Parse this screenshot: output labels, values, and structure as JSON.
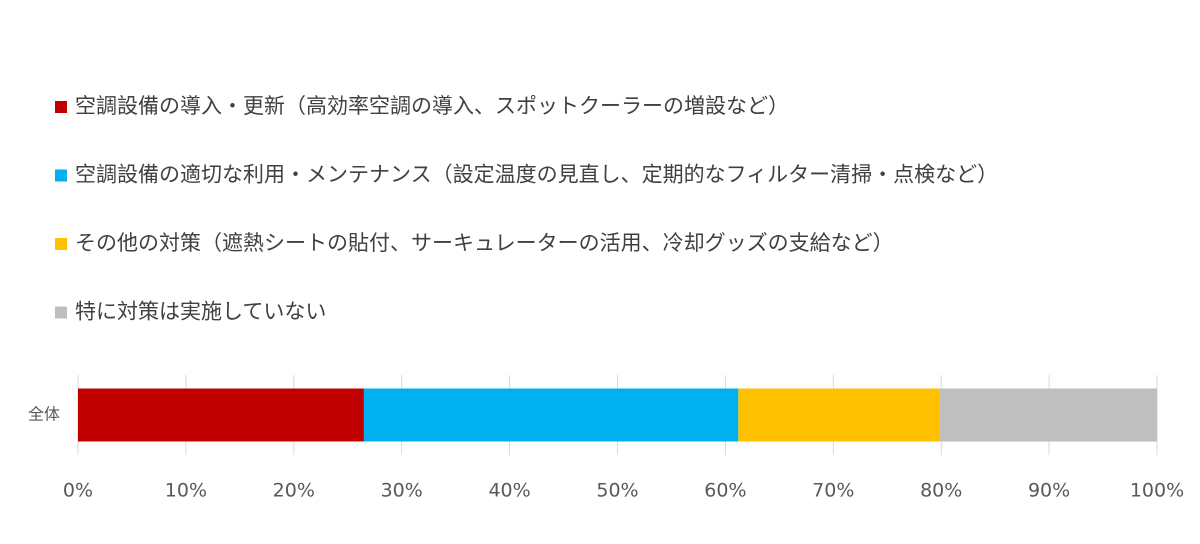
{
  "chart_data": {
    "type": "bar",
    "orientation": "horizontal",
    "stacked": true,
    "categories": [
      "全体"
    ],
    "series": [
      {
        "name": "空調設備の導入・更新（高効率空調の導入、スポットクーラーの増設など）",
        "color": "#c00000",
        "values": [
          26.5
        ]
      },
      {
        "name": "空調設備の適切な利用・メンテナンス（設定温度の見直し、定期的なフィルター清掃・点検など）",
        "color": "#00b0f0",
        "values": [
          34.7
        ]
      },
      {
        "name": "その他の対策（遮熱シートの貼付、サーキュレーターの活用、冷却グッズの支給など）",
        "color": "#ffc000",
        "values": [
          18.6
        ]
      },
      {
        "name": "特に対策は実施していない",
        "color": "#bfbfbf",
        "values": [
          20.2
        ]
      }
    ],
    "xlim": [
      0,
      100
    ],
    "xticks": [
      {
        "value": 0,
        "label": "0%"
      },
      {
        "value": 10,
        "label": "10%"
      },
      {
        "value": 20,
        "label": "20%"
      },
      {
        "value": 30,
        "label": "30%"
      },
      {
        "value": 40,
        "label": "40%"
      },
      {
        "value": 50,
        "label": "50%"
      },
      {
        "value": 60,
        "label": "60%"
      },
      {
        "value": 70,
        "label": "70%"
      },
      {
        "value": 80,
        "label": "80%"
      },
      {
        "value": 90,
        "label": "90%"
      },
      {
        "value": 100,
        "label": "100%"
      }
    ],
    "grid": true,
    "legend": "top"
  }
}
